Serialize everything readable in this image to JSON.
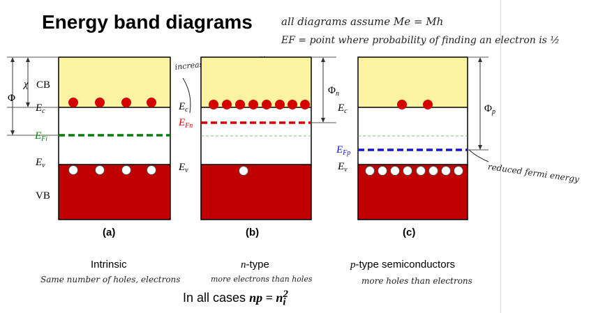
{
  "title": "Energy band diagrams",
  "notes": {
    "assumption": "all diagrams assume Me = Mh",
    "fermi_definition": "EF = point where probability of finding an electron is ½",
    "increased": "increased fermi energy",
    "reduced": "reduced fermi energy"
  },
  "diagram_labels": {
    "cb": "CB",
    "vb": "VB",
    "chi": "χ",
    "phi": "Φ",
    "ec": "E",
    "ec_sub": "c",
    "ev": "E",
    "ev_sub": "v",
    "efi": "E",
    "efi_sub": "Fi",
    "efn": "E",
    "efn_sub": "Fn",
    "efp": "E",
    "efp_sub": "Fp",
    "phin": "Φ",
    "phin_sub": "n",
    "phip": "Φ",
    "phip_sub": "p",
    "a": "(a)",
    "b": "(b)",
    "c": "(c)"
  },
  "captions": {
    "intrinsic": "Intrinsic",
    "ntype_italic": "n",
    "ntype_rest": "-type",
    "ptype_italic": "p",
    "ptype_rest": "-type semiconductors",
    "hand_a": "Same number of holes, electrons",
    "hand_b": "more electrons than holes",
    "hand_c": "more holes than electrons"
  },
  "bottom": {
    "prefix": "In all cases",
    "eq_np": "np",
    "eq_eq": " = ",
    "eq_n": "n",
    "eq_i": "i",
    "eq_sup": "2"
  },
  "colors": {
    "conduction_band": "#fcf4a3",
    "valence_band": "#c00000",
    "electron": "#d40000",
    "fermi_intrinsic": "#0a7a0a",
    "fermi_n": "#d40000",
    "fermi_p": "#1515d6",
    "reference_level": "#4caf50"
  }
}
